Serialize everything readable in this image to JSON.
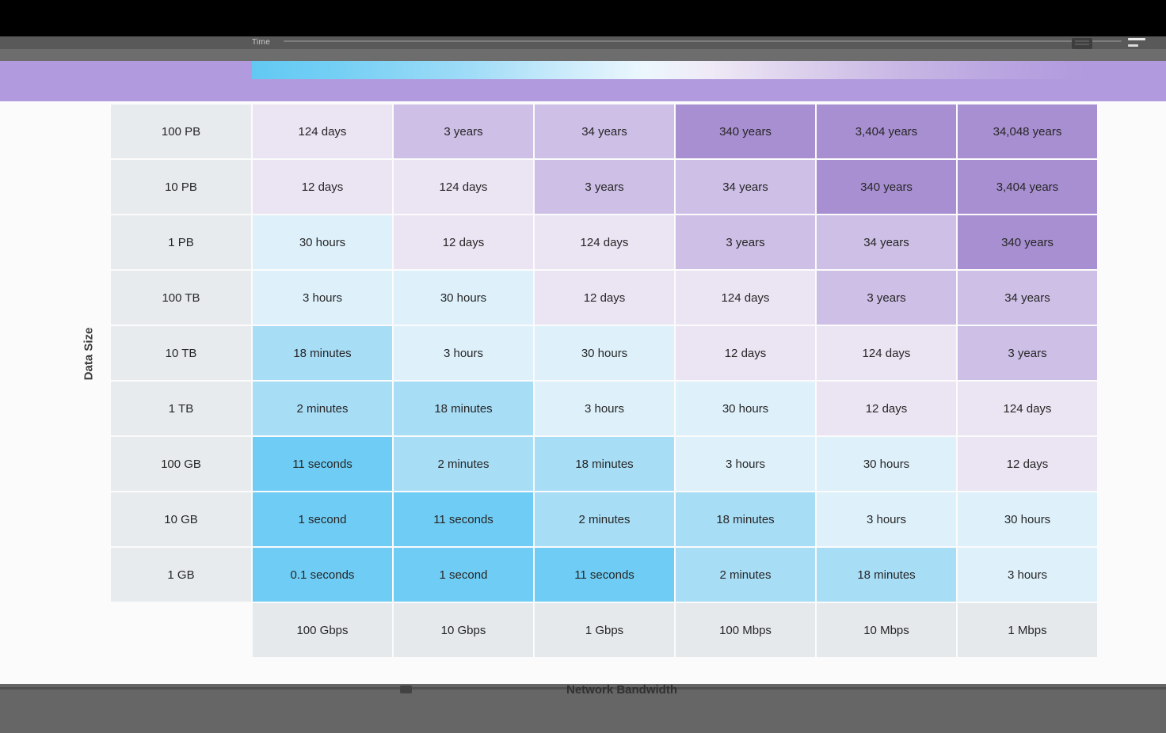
{
  "window": {
    "background": "#fbfbfb",
    "top_bar_color": "#000000",
    "toolbar_color": "#595959",
    "toolbar2_color": "#6d6d6d",
    "band_color": "#b19ade",
    "footer_color": "#666666"
  },
  "legend": {
    "label": "Time",
    "gradient_stops": [
      "#62c9f3",
      "#9fdcf7",
      "#ecf7fd",
      "#ddd2ed",
      "#c9b8e5",
      "#b19ade"
    ]
  },
  "axes": {
    "y_label": "Data Size",
    "x_label": "Network Bandwidth"
  },
  "chart_data": {
    "type": "heatmap",
    "title": "",
    "x_label": "Network Bandwidth",
    "y_label": "Data Size",
    "legend_label": "Time",
    "x_categories": [
      "100 Gbps",
      "10 Gbps",
      "1 Gbps",
      "100 Mbps",
      "10 Mbps",
      "1 Mbps"
    ],
    "y_categories": [
      "100 PB",
      "10 PB",
      "1 PB",
      "100 TB",
      "10 TB",
      "1 TB",
      "100 GB",
      "10 GB",
      "1 GB"
    ],
    "cells": [
      [
        "124 days",
        "3 years",
        "34 years",
        "340 years",
        "3,404 years",
        "34,048 years"
      ],
      [
        "12 days",
        "124 days",
        "3 years",
        "34 years",
        "340 years",
        "3,404 years"
      ],
      [
        "30 hours",
        "12 days",
        "124 days",
        "3 years",
        "34 years",
        "340 years"
      ],
      [
        "3 hours",
        "30 hours",
        "12 days",
        "124 days",
        "3 years",
        "34 years"
      ],
      [
        "18 minutes",
        "3 hours",
        "30 hours",
        "12 days",
        "124 days",
        "3 years"
      ],
      [
        "2 minutes",
        "18 minutes",
        "3 hours",
        "30 hours",
        "12 days",
        "124 days"
      ],
      [
        "11 seconds",
        "2 minutes",
        "18 minutes",
        "3 hours",
        "30 hours",
        "12 days"
      ],
      [
        "1 second",
        "11 seconds",
        "2 minutes",
        "18 minutes",
        "3 hours",
        "30 hours"
      ],
      [
        "0.1 seconds",
        "1 second",
        "11 seconds",
        "2 minutes",
        "18 minutes",
        "3 hours"
      ]
    ],
    "cell_color_buckets": [
      [
        "days",
        "years_short",
        "years_short",
        "years_long",
        "years_long",
        "years_long"
      ],
      [
        "days",
        "days",
        "years_short",
        "years_short",
        "years_long",
        "years_long"
      ],
      [
        "hours",
        "days",
        "days",
        "years_short",
        "years_short",
        "years_long"
      ],
      [
        "hours",
        "hours",
        "days",
        "days",
        "years_short",
        "years_short"
      ],
      [
        "minutes",
        "hours",
        "hours",
        "days",
        "days",
        "years_short"
      ],
      [
        "minutes",
        "minutes",
        "hours",
        "hours",
        "days",
        "days"
      ],
      [
        "seconds",
        "minutes",
        "minutes",
        "hours",
        "hours",
        "days"
      ],
      [
        "seconds",
        "seconds",
        "minutes",
        "minutes",
        "hours",
        "hours"
      ],
      [
        "seconds",
        "seconds",
        "seconds",
        "minutes",
        "minutes",
        "hours"
      ]
    ],
    "color_scale": {
      "seconds": "#6fccf4",
      "minutes": "#a8ddf6",
      "hours": "#def1fb",
      "days": "#ebe4f3",
      "years_short": "#cdbfe6",
      "years_long": "#a88fd1"
    },
    "row_header_color": "#e8ebee",
    "column_header_color": "#e6e9ec"
  }
}
